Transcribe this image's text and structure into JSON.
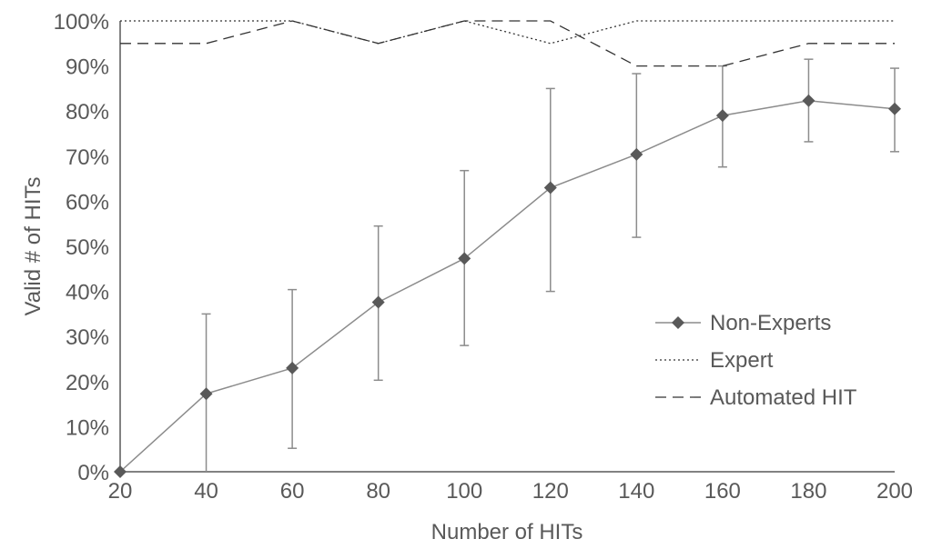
{
  "chart_data": {
    "type": "line",
    "title": "",
    "xlabel": "Number of HITs",
    "ylabel": "Valid # of HITs",
    "x": [
      20,
      40,
      60,
      80,
      100,
      120,
      140,
      160,
      180,
      200
    ],
    "xlim": [
      20,
      200
    ],
    "ylim": [
      0,
      100
    ],
    "y_ticks": [
      "0%",
      "10%",
      "20%",
      "30%",
      "40%",
      "50%",
      "60%",
      "70%",
      "80%",
      "90%",
      "100%"
    ],
    "x_ticks": [
      "20",
      "40",
      "60",
      "80",
      "100",
      "120",
      "140",
      "160",
      "180",
      "200"
    ],
    "grid": false,
    "legend_position": "bottom-right",
    "series": [
      {
        "name": "Non-Experts",
        "style": "solid-diamond",
        "color": "#595959",
        "values": [
          0,
          17.3,
          23,
          37.6,
          47.3,
          63,
          70.4,
          79,
          82.3,
          80.5
        ],
        "error_low": [
          0,
          0,
          5.2,
          20.3,
          28,
          40,
          52,
          67.6,
          73.2,
          71
        ],
        "error_high": [
          0,
          35,
          40.4,
          54.5,
          66.8,
          85,
          88.3,
          90,
          91.5,
          89.5
        ]
      },
      {
        "name": "Expert",
        "style": "dotted",
        "color": "#333333",
        "values": [
          100,
          100,
          100,
          95,
          100,
          95,
          100,
          100,
          100,
          100
        ]
      },
      {
        "name": "Automated HIT",
        "style": "dashed",
        "color": "#333333",
        "values": [
          95,
          95,
          100,
          95,
          100,
          100,
          90,
          90,
          95,
          95
        ]
      }
    ]
  }
}
